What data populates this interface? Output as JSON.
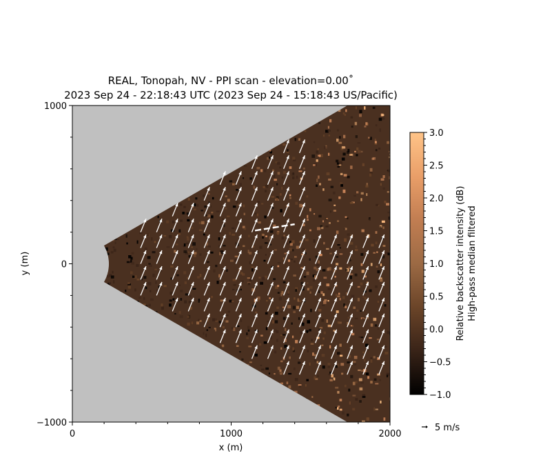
{
  "chart_data": {
    "type": "heatmap",
    "title_line1": "REAL, Tonopah, NV - PPI scan - elevation=0.00$^\\circ$",
    "title_line1_display": "REAL, Tonopah, NV - PPI scan - elevation=0.00˚",
    "title_line2": "2023 Sep 24 - 22:18:43 UTC (2023 Sep 24 - 15:18:43 US/Pacific)",
    "xlabel": "x (m)",
    "ylabel": "y (m)",
    "xlim": [
      0,
      2000
    ],
    "ylim": [
      -1000,
      1000
    ],
    "xticks": [
      0,
      1000,
      2000
    ],
    "yticks": [
      -1000,
      0,
      1000
    ],
    "background_color": "#c0c0c0",
    "scan": {
      "min_range_m": 230,
      "max_range_m": 2000,
      "half_angle_deg": 30
    },
    "colorbar": {
      "label_line1": "Relative backscatter intensity (dB)",
      "label_line2": "High-pass median filtered",
      "min": -1.0,
      "max": 3.0,
      "ticks": [
        "−1.0",
        "−0.5",
        "0.0",
        "0.5",
        "1.0",
        "1.5",
        "2.0",
        "2.5",
        "3.0"
      ],
      "tick_values": [
        -1.0,
        -0.5,
        0.0,
        0.5,
        1.0,
        1.5,
        2.0,
        2.5,
        3.0
      ],
      "colors": [
        "#000000",
        "#3a2418",
        "#6a4428",
        "#9c6a44",
        "#d08a5c",
        "#f5b57a",
        "#ffc488"
      ]
    },
    "wind_vectors": {
      "color": "#ffffff",
      "typical_speed_ms": 5.5,
      "typical_direction": "toward north-northeast",
      "quiver_key": {
        "label": "5 m/s",
        "speed_ms": 5
      }
    },
    "annotations": [
      {
        "text": "",
        "description": ""
      }
    ]
  }
}
